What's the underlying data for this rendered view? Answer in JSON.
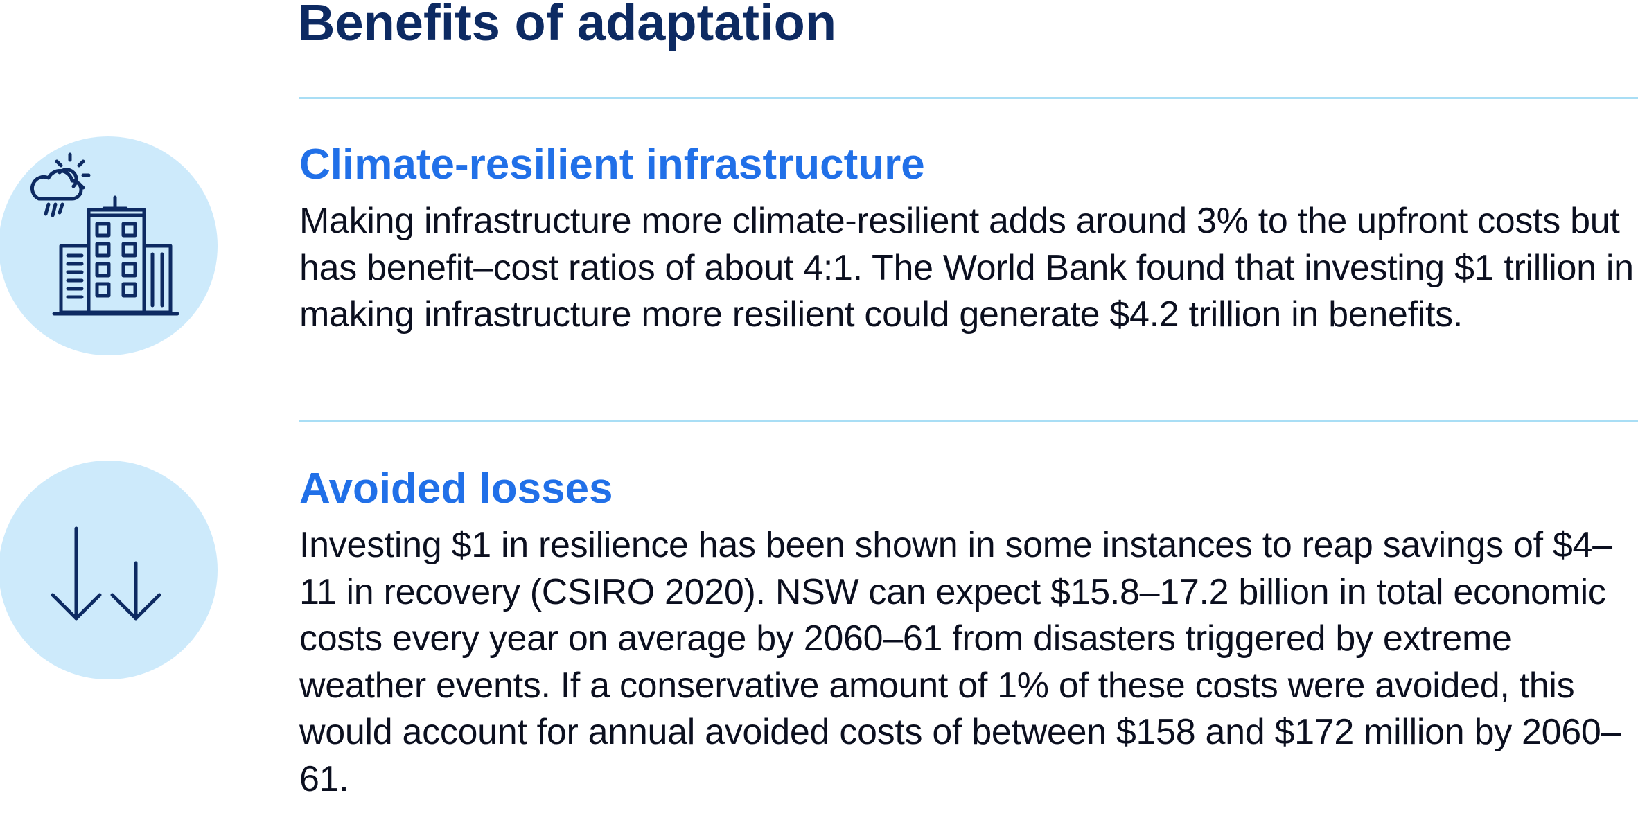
{
  "page": {
    "title": "Benefits of adaptation"
  },
  "colors": {
    "title": "#0d2a62",
    "heading": "#2170e8",
    "divider": "#a9def5",
    "icon_circle": "#cdeafb",
    "icon_stroke": "#0d2a62"
  },
  "sections": [
    {
      "icon": "building-weather-icon",
      "heading": "Climate-resilient infrastructure",
      "body": "Making infrastructure more climate-resilient adds around 3% to the upfront costs but has benefit–cost ratios of about 4:1. The World Bank found that investing $1 trillion in making infrastructure more resilient could generate $4.2 trillion in benefits."
    },
    {
      "icon": "double-down-arrow-icon",
      "heading": "Avoided losses",
      "body": "Investing $1 in resilience has been shown in some instances to reap savings of $4–11 in recovery (CSIRO 2020). NSW can expect $15.8–17.2 billion in total economic costs every year on average by 2060–61 from disasters triggered by extreme weather events. If a conservative amount of 1% of these costs were avoided, this would account for annual avoided costs of between $158 and $172 million by 2060–61."
    }
  ]
}
